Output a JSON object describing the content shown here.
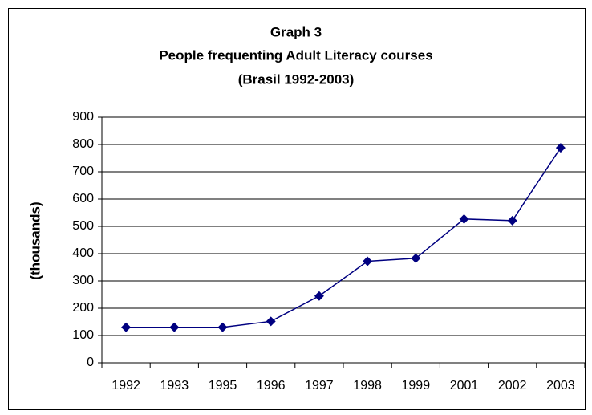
{
  "chart_data": {
    "type": "line",
    "title": [
      "Graph 3",
      "People frequenting Adult Literacy courses",
      "(Brasil 1992-2003)"
    ],
    "y_label": "(thousands)",
    "categories": [
      "1992",
      "1993",
      "1995",
      "1996",
      "1997",
      "1998",
      "1999",
      "2001",
      "2002",
      "2003"
    ],
    "series": [
      {
        "color": "#000080",
        "values": [
          130,
          130,
          130,
          152,
          245,
          372,
          383,
          527,
          521,
          788
        ]
      }
    ],
    "ylim": [
      0,
      900
    ],
    "yticks": [
      0,
      100,
      200,
      300,
      400,
      500,
      600,
      700,
      800,
      900
    ],
    "grid": true
  }
}
